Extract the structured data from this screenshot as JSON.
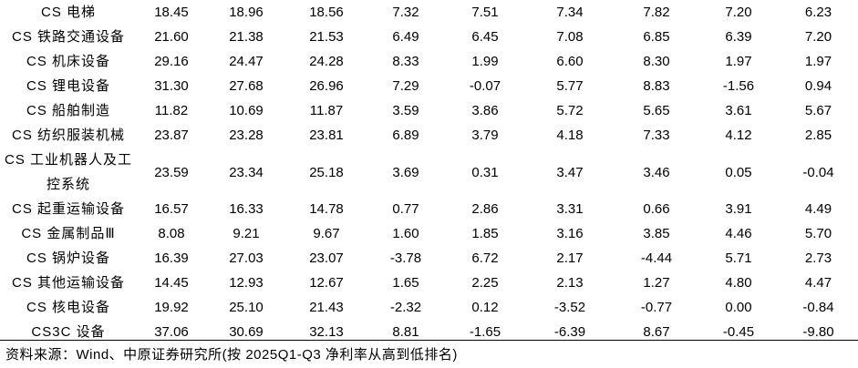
{
  "table": {
    "rows": [
      {
        "name": "CS 电梯",
        "values": [
          "18.45",
          "18.96",
          "18.56",
          "7.32",
          "7.51",
          "7.34",
          "7.82",
          "7.20",
          "6.23"
        ]
      },
      {
        "name": "CS 铁路交通设备",
        "values": [
          "21.60",
          "21.38",
          "21.53",
          "6.49",
          "6.45",
          "7.08",
          "6.85",
          "6.39",
          "7.20"
        ]
      },
      {
        "name": "CS 机床设备",
        "values": [
          "29.16",
          "24.47",
          "24.28",
          "8.33",
          "1.99",
          "6.60",
          "8.30",
          "1.97",
          "1.97"
        ]
      },
      {
        "name": "CS 锂电设备",
        "values": [
          "31.30",
          "27.68",
          "26.96",
          "7.29",
          "-0.07",
          "5.77",
          "8.83",
          "-1.56",
          "0.94"
        ]
      },
      {
        "name": "CS 船舶制造",
        "values": [
          "11.82",
          "10.69",
          "11.87",
          "3.59",
          "3.86",
          "5.72",
          "5.65",
          "3.61",
          "5.67"
        ]
      },
      {
        "name": "CS 纺织服装机械",
        "values": [
          "23.87",
          "23.28",
          "23.81",
          "6.89",
          "3.79",
          "4.18",
          "7.33",
          "4.12",
          "2.85"
        ]
      },
      {
        "name": "CS 工业机器人及工控系统",
        "values": [
          "23.59",
          "23.34",
          "25.18",
          "3.69",
          "0.31",
          "3.47",
          "3.46",
          "0.05",
          "-0.04"
        ]
      },
      {
        "name": "CS 起重运输设备",
        "values": [
          "16.57",
          "16.33",
          "14.78",
          "0.77",
          "2.86",
          "3.31",
          "0.66",
          "3.91",
          "4.49"
        ]
      },
      {
        "name": "CS 金属制品Ⅲ",
        "values": [
          "8.08",
          "9.21",
          "9.67",
          "1.60",
          "1.85",
          "3.16",
          "3.85",
          "4.46",
          "5.70"
        ]
      },
      {
        "name": "CS 锅炉设备",
        "values": [
          "16.39",
          "27.03",
          "23.07",
          "-3.78",
          "6.72",
          "2.17",
          "-4.44",
          "5.71",
          "2.73"
        ]
      },
      {
        "name": "CS 其他运输设备",
        "values": [
          "14.45",
          "12.93",
          "12.67",
          "1.65",
          "2.25",
          "2.13",
          "1.27",
          "4.80",
          "4.47"
        ]
      },
      {
        "name": "CS 核电设备",
        "values": [
          "19.92",
          "25.10",
          "21.43",
          "-2.32",
          "0.12",
          "-3.52",
          "-0.77",
          "0.00",
          "-0.84"
        ]
      },
      {
        "name": "CS3C 设备",
        "values": [
          "37.06",
          "30.69",
          "32.13",
          "8.81",
          "-1.65",
          "-6.39",
          "8.67",
          "-0.45",
          "-9.80"
        ]
      }
    ]
  },
  "footer": {
    "source_note": "资料来源：Wind、中原证券研究所(按 2025Q1-Q3 净利率从高到低排名)"
  }
}
